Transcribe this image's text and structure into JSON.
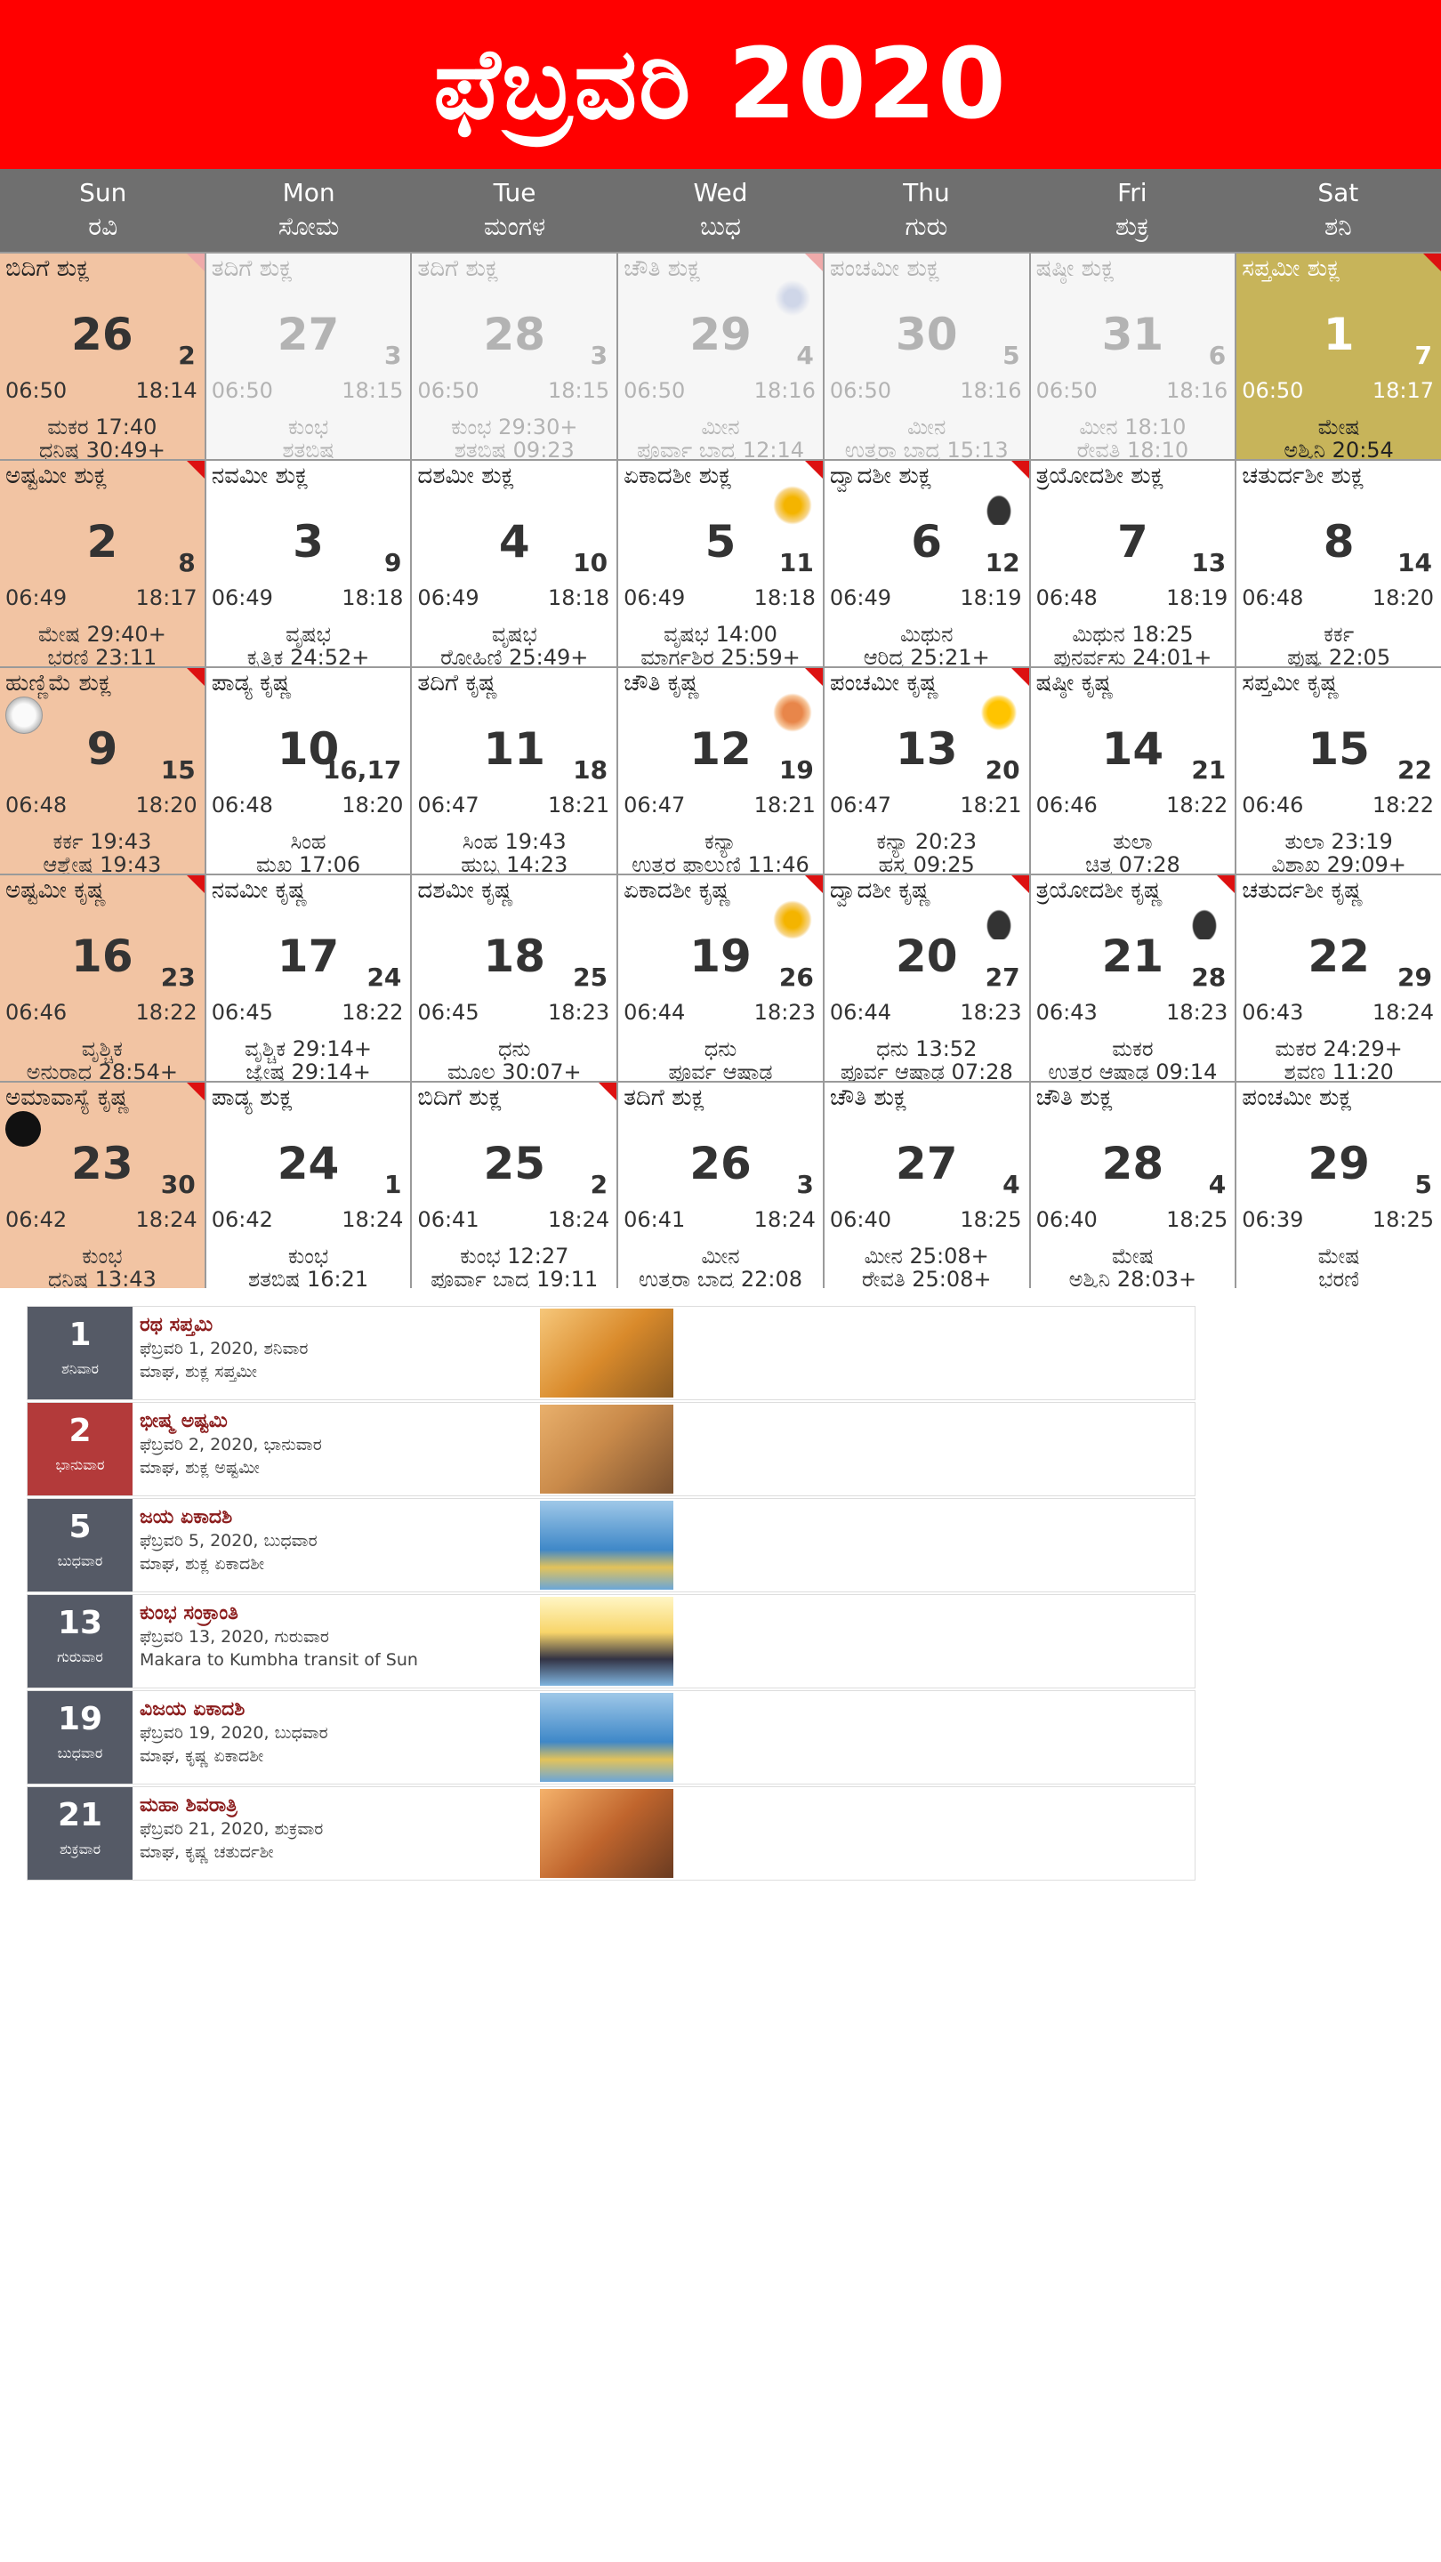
{
  "title": "ಫೆಬ್ರವರಿ 2020",
  "weekdays": [
    {
      "en": "Sun",
      "kn": "ರವಿ"
    },
    {
      "en": "Mon",
      "kn": "ಸೋಮ"
    },
    {
      "en": "Tue",
      "kn": "ಮಂಗಳ"
    },
    {
      "en": "Wed",
      "kn": "ಬುಧ"
    },
    {
      "en": "Thu",
      "kn": "ಗುರು"
    },
    {
      "en": "Fri",
      "kn": "ಶುಕ್ರ"
    },
    {
      "en": "Sat",
      "kn": "ಶನಿ"
    }
  ],
  "days": [
    {
      "tithi": "ಬಿದಿಗೆ ಶುಕ್ಲ",
      "day": "26",
      "sub": "2",
      "sunrise": "06:50",
      "sunset": "18:14",
      "nak1": "ಮಕರ 17:40",
      "nak2": "ಧನಿಷ್ಠ 30:49+"
    },
    {
      "tithi": "ತದಿಗೆ ಶುಕ್ಲ",
      "day": "27",
      "sub": "3",
      "sunrise": "06:50",
      "sunset": "18:15",
      "nak1": "ಕುಂಭ",
      "nak2": "ಶತಬಿಷ"
    },
    {
      "tithi": "ತದಿಗೆ ಶುಕ್ಲ",
      "day": "28",
      "sub": "3",
      "sunrise": "06:50",
      "sunset": "18:15",
      "nak1": "ಕುಂಭ 29:30+",
      "nak2": "ಶತಬಿಷ 09:23"
    },
    {
      "tithi": "ಚೌತಿ ಶುಕ್ಲ",
      "day": "29",
      "sub": "4",
      "sunrise": "06:50",
      "sunset": "18:16",
      "nak1": "ಮೀನ",
      "nak2": "ಪೂರ್ವಾ ಬಾದ್ರ 12:14"
    },
    {
      "tithi": "ಪಂಚಮೀ ಶುಕ್ಲ",
      "day": "30",
      "sub": "5",
      "sunrise": "06:50",
      "sunset": "18:16",
      "nak1": "ಮೀನ",
      "nak2": "ಉತ್ತರಾ ಬಾದ್ರ 15:13"
    },
    {
      "tithi": "ಷಷ್ಠೀ ಶುಕ್ಲ",
      "day": "31",
      "sub": "6",
      "sunrise": "06:50",
      "sunset": "18:16",
      "nak1": "ಮೀನ 18:10",
      "nak2": "ರೇವತಿ 18:10"
    },
    {
      "tithi": "ಸಪ್ತಮೀ ಶುಕ್ಲ",
      "day": "1",
      "sub": "7",
      "sunrise": "06:50",
      "sunset": "18:17",
      "nak1": "ಮೇಷ",
      "nak2": "ಅಶ್ವಿನಿ 20:54"
    },
    {
      "tithi": "ಅಷ್ಟಮೀ ಶುಕ್ಲ",
      "day": "2",
      "sub": "8",
      "sunrise": "06:49",
      "sunset": "18:17",
      "nak1": "ಮೇಷ 29:40+",
      "nak2": "ಭರಣಿ 23:11"
    },
    {
      "tithi": "ನವಮೀ ಶುಕ್ಲ",
      "day": "3",
      "sub": "9",
      "sunrise": "06:49",
      "sunset": "18:18",
      "nak1": "ವೃಷಭ",
      "nak2": "ಕೃತ್ತಿಕ 24:52+"
    },
    {
      "tithi": "ದಶಮೀ ಶುಕ್ಲ",
      "day": "4",
      "sub": "10",
      "sunrise": "06:49",
      "sunset": "18:18",
      "nak1": "ವೃಷಭ",
      "nak2": "ರೋಹಿಣಿ 25:49+"
    },
    {
      "tithi": "ಏಕಾದಶೀ ಶುಕ್ಲ",
      "day": "5",
      "sub": "11",
      "sunrise": "06:49",
      "sunset": "18:18",
      "nak1": "ವೃಷಭ 14:00",
      "nak2": "ಮಾರ್ಗಶಿರ 25:59+"
    },
    {
      "tithi": "ದ್ವಾದಶೀ ಶುಕ್ಲ",
      "day": "6",
      "sub": "12",
      "sunrise": "06:49",
      "sunset": "18:19",
      "nak1": "ಮಿಥುನ",
      "nak2": "ಆರಿದ್ರ 25:21+"
    },
    {
      "tithi": "ತ್ರಯೋದಶೀ ಶುಕ್ಲ",
      "day": "7",
      "sub": "13",
      "sunrise": "06:48",
      "sunset": "18:19",
      "nak1": "ಮಿಥುನ 18:25",
      "nak2": "ಪುನರ್ವಸು 24:01+"
    },
    {
      "tithi": "ಚತುರ್ದಶೀ ಶುಕ್ಲ",
      "day": "8",
      "sub": "14",
      "sunrise": "06:48",
      "sunset": "18:20",
      "nak1": "ಕರ್ಕ",
      "nak2": "ಪುಷ್ಯ 22:05"
    },
    {
      "tithi": "ಹುಣ್ಣಿಮೆ ಶುಕ್ಲ",
      "day": "9",
      "sub": "15",
      "sunrise": "06:48",
      "sunset": "18:20",
      "nak1": "ಕರ್ಕ 19:43",
      "nak2": "ಆಶ್ಲೇಷ 19:43"
    },
    {
      "tithi": "ಪಾಡ್ಯ ಕೃಷ್ಣ",
      "day": "10",
      "sub": "16,17",
      "sunrise": "06:48",
      "sunset": "18:20",
      "nak1": "ಸಿಂಹ",
      "nak2": "ಮಖ 17:06"
    },
    {
      "tithi": "ತದಿಗೆ ಕೃಷ್ಣ",
      "day": "11",
      "sub": "18",
      "sunrise": "06:47",
      "sunset": "18:21",
      "nak1": "ಸಿಂಹ 19:43",
      "nak2": "ಹುಬ್ಬ 14:23"
    },
    {
      "tithi": "ಚೌತಿ ಕೃಷ್ಣ",
      "day": "12",
      "sub": "19",
      "sunrise": "06:47",
      "sunset": "18:21",
      "nak1": "ಕನ್ಯಾ",
      "nak2": "ಉತ್ತರ ಫಾಲ್ಗುಣಿ 11:46"
    },
    {
      "tithi": "ಪಂಚಮೀ ಕೃಷ್ಣ",
      "day": "13",
      "sub": "20",
      "sunrise": "06:47",
      "sunset": "18:21",
      "nak1": "ಕನ್ಯಾ 20:23",
      "nak2": "ಹಸ್ತ 09:25"
    },
    {
      "tithi": "ಷಷ್ಠೀ ಕೃಷ್ಣ",
      "day": "14",
      "sub": "21",
      "sunrise": "06:46",
      "sunset": "18:22",
      "nak1": "ತುಲಾ",
      "nak2": "ಚಿತ್ರ 07:28"
    },
    {
      "tithi": "ಸಪ್ತಮೀ ಕೃಷ್ಣ",
      "day": "15",
      "sub": "22",
      "sunrise": "06:46",
      "sunset": "18:22",
      "nak1": "ತುಲಾ 23:19",
      "nak2": "ವಿಶಾಖ 29:09+"
    },
    {
      "tithi": "ಅಷ್ಟಮೀ ಕೃಷ್ಣ",
      "day": "16",
      "sub": "23",
      "sunrise": "06:46",
      "sunset": "18:22",
      "nak1": "ವೃಶ್ಚಿಕ",
      "nak2": "ಅನುರಾಧ 28:54+"
    },
    {
      "tithi": "ನವಮೀ ಕೃಷ್ಣ",
      "day": "17",
      "sub": "24",
      "sunrise": "06:45",
      "sunset": "18:22",
      "nak1": "ವೃಶ್ಚಿಕ 29:14+",
      "nak2": "ಜ್ಯೇಷ್ಠ 29:14+"
    },
    {
      "tithi": "ದಶಮೀ ಕೃಷ್ಣ",
      "day": "18",
      "sub": "25",
      "sunrise": "06:45",
      "sunset": "18:23",
      "nak1": "ಧನು",
      "nak2": "ಮೂಲ 30:07+"
    },
    {
      "tithi": "ಏಕಾದಶೀ ಕೃಷ್ಣ",
      "day": "19",
      "sub": "26",
      "sunrise": "06:44",
      "sunset": "18:23",
      "nak1": "ಧನು",
      "nak2": "ಪೂರ್ವ ಆಷಾಢ"
    },
    {
      "tithi": "ದ್ವಾದಶೀ ಕೃಷ್ಣ",
      "day": "20",
      "sub": "27",
      "sunrise": "06:44",
      "sunset": "18:23",
      "nak1": "ಧನು 13:52",
      "nak2": "ಪೂರ್ವ ಆಷಾಢ 07:28"
    },
    {
      "tithi": "ತ್ರಯೋದಶೀ ಕೃಷ್ಣ",
      "day": "21",
      "sub": "28",
      "sunrise": "06:43",
      "sunset": "18:23",
      "nak1": "ಮಕರ",
      "nak2": "ಉತ್ತರ ಆಷಾಢ 09:14"
    },
    {
      "tithi": "ಚತುರ್ದಶೀ ಕೃಷ್ಣ",
      "day": "22",
      "sub": "29",
      "sunrise": "06:43",
      "sunset": "18:24",
      "nak1": "ಮಕರ 24:29+",
      "nak2": "ಶ್ರವಣ 11:20"
    },
    {
      "tithi": "ಅಮಾವಾಸ್ಯೆ ಕೃಷ್ಣ",
      "day": "23",
      "sub": "30",
      "sunrise": "06:42",
      "sunset": "18:24",
      "nak1": "ಕುಂಭ",
      "nak2": "ಧನಿಷ್ಠ 13:43"
    },
    {
      "tithi": "ಪಾಡ್ಯ ಶುಕ್ಲ",
      "day": "24",
      "sub": "1",
      "sunrise": "06:42",
      "sunset": "18:24",
      "nak1": "ಕುಂಭ",
      "nak2": "ಶತಬಿಷ 16:21"
    },
    {
      "tithi": "ಬಿದಿಗೆ ಶುಕ್ಲ",
      "day": "25",
      "sub": "2",
      "sunrise": "06:41",
      "sunset": "18:24",
      "nak1": "ಕುಂಭ 12:27",
      "nak2": "ಪೂರ್ವಾ ಬಾದ್ರ 19:11"
    },
    {
      "tithi": "ತದಿಗೆ ಶುಕ್ಲ",
      "day": "26",
      "sub": "3",
      "sunrise": "06:41",
      "sunset": "18:24",
      "nak1": "ಮೀನ",
      "nak2": "ಉತ್ತರಾ ಬಾದ್ರ 22:08"
    },
    {
      "tithi": "ಚೌತಿ ಶುಕ್ಲ",
      "day": "27",
      "sub": "4",
      "sunrise": "06:40",
      "sunset": "18:25",
      "nak1": "ಮೀನ 25:08+",
      "nak2": "ರೇವತಿ 25:08+"
    },
    {
      "tithi": "ಚೌತಿ ಶುಕ್ಲ",
      "day": "28",
      "sub": "4",
      "sunrise": "06:40",
      "sunset": "18:25",
      "nak1": "ಮೇಷ",
      "nak2": "ಅಶ್ವಿನಿ 28:03+"
    },
    {
      "tithi": "ಪಂಚಮೀ ಶುಕ್ಲ",
      "day": "29",
      "sub": "5",
      "sunrise": "06:39",
      "sunset": "18:25",
      "nak1": "ಮೇಷ",
      "nak2": "ಭರಣಿ"
    }
  ],
  "festivals": [
    {
      "num": "1",
      "weekday": "ಶನಿವಾರ",
      "name": "ರಥ ಸಪ್ತಮಿ",
      "date": "ಫೆಬ್ರವರಿ 1, 2020, ಶನಿವಾರ",
      "detail": "ಮಾಘ, ಶುಕ್ಲ ಸಪ್ತಮೀ"
    },
    {
      "num": "2",
      "weekday": "ಭಾನುವಾರ",
      "name": "ಭೀಷ್ಮ ಅಷ್ಟಮಿ",
      "date": "ಫೆಬ್ರವರಿ 2, 2020, ಭಾನುವಾರ",
      "detail": "ಮಾಘ, ಶುಕ್ಲ ಅಷ್ಟಮೀ"
    },
    {
      "num": "5",
      "weekday": "ಬುಧವಾರ",
      "name": "ಜಯ ಏಕಾದಶಿ",
      "date": "ಫೆಬ್ರವರಿ 5, 2020, ಬುಧವಾರ",
      "detail": "ಮಾಘ, ಶುಕ್ಲ ಏಕಾದಶೀ"
    },
    {
      "num": "13",
      "weekday": "ಗುರುವಾರ",
      "name": "ಕುಂಭ ಸಂಕ್ರಾಂತಿ",
      "date": "ಫೆಬ್ರವರಿ 13, 2020, ಗುರುವಾರ",
      "detail": "Makara to Kumbha transit of Sun"
    },
    {
      "num": "19",
      "weekday": "ಬುಧವಾರ",
      "name": "ವಿಜಯ ಏಕಾದಶಿ",
      "date": "ಫೆಬ್ರವರಿ 19, 2020, ಬುಧವಾರ",
      "detail": "ಮಾಘ, ಕೃಷ್ಣ ಏಕಾದಶೀ"
    },
    {
      "num": "21",
      "weekday": "ಶುಕ್ರವಾರ",
      "name": "ಮಹಾ ಶಿವರಾತ್ರಿ",
      "date": "ಫೆಬ್ರವರಿ 21, 2020, ಶುಕ್ರವಾರ",
      "detail": "ಮಾಘ, ಕೃಷ್ಣ ಚತುರ್ದಶೀ"
    }
  ],
  "colors": {
    "header": "#ff0000",
    "weekday_bar": "#6f6f6f",
    "highlight": "#f2c4a3",
    "today": "#c7b45a",
    "festival_date": "#555a66",
    "festival_date_holiday": "#b33a3a"
  }
}
